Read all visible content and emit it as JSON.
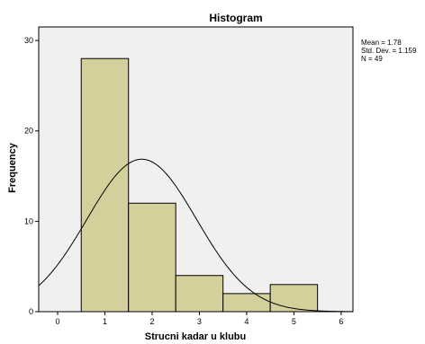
{
  "chart_data": {
    "type": "bar",
    "title": "Histogram",
    "xlabel": "Strucni kadar u klubu",
    "ylabel": "Frequency",
    "xlim": [
      -0.4,
      6.25
    ],
    "ylim": [
      0,
      31.5
    ],
    "x_ticks": [
      0,
      1,
      2,
      3,
      4,
      5,
      6
    ],
    "y_ticks": [
      0,
      10,
      20,
      30
    ],
    "bins": [
      {
        "center": 1,
        "from": 0.5,
        "to": 1.5,
        "value": 28
      },
      {
        "center": 2,
        "from": 1.5,
        "to": 2.5,
        "value": 12
      },
      {
        "center": 3,
        "from": 2.5,
        "to": 3.5,
        "value": 4
      },
      {
        "center": 4,
        "from": 3.5,
        "to": 4.5,
        "value": 2
      },
      {
        "center": 5,
        "from": 4.5,
        "to": 5.5,
        "value": 3
      }
    ],
    "normal_curve": {
      "mean": 1.78,
      "sd": 1.159,
      "n": 49,
      "bin_width": 1
    },
    "stats_text": [
      "Mean = 1.78",
      "Std. Dev. = 1.159",
      "N = 49"
    ],
    "colors": {
      "bar_fill": "#d4d09c",
      "bar_stroke": "#000000",
      "plot_background": "#f0f0f0",
      "curve": "#000000"
    },
    "grid": false,
    "legend": "none"
  }
}
